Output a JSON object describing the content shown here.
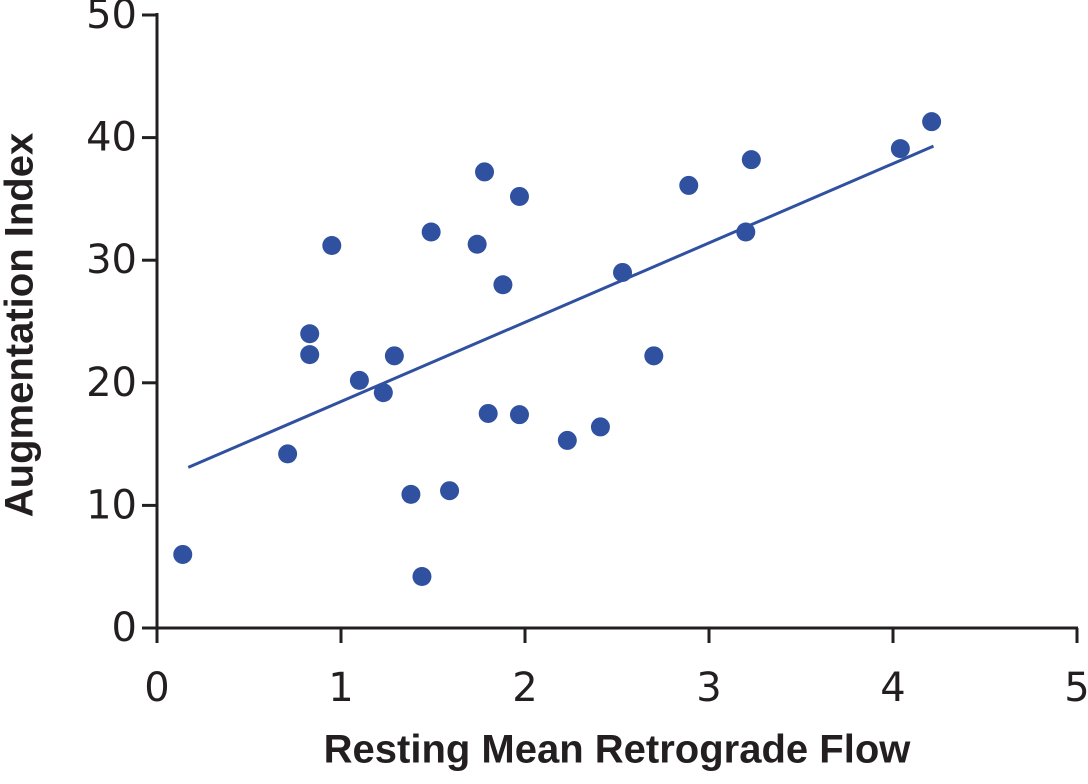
{
  "chart_data": {
    "type": "scatter",
    "x_label": "Resting Mean Retrograde Flow",
    "y_label": "Augmentation Index",
    "xlim": [
      0,
      5
    ],
    "xticks": [
      0,
      1,
      2,
      3,
      4,
      5
    ],
    "ylim": [
      0,
      50
    ],
    "yticks": [
      0,
      10,
      20,
      30,
      40,
      50
    ],
    "color": "#3050a0",
    "x": [
      0.14,
      0.71,
      0.83,
      0.83,
      0.95,
      1.1,
      1.23,
      1.29,
      1.38,
      1.44,
      1.49,
      1.59,
      1.74,
      1.78,
      1.8,
      1.88,
      1.97,
      1.97,
      2.23,
      2.41,
      2.53,
      2.7,
      2.89,
      3.2,
      3.23,
      4.04,
      4.21
    ],
    "values": [
      6.0,
      14.2,
      24.0,
      22.3,
      31.2,
      20.2,
      19.2,
      22.2,
      10.9,
      4.2,
      32.3,
      11.2,
      31.3,
      37.2,
      17.5,
      28.0,
      35.2,
      17.4,
      15.3,
      16.4,
      29.0,
      22.2,
      36.1,
      32.3,
      38.2,
      39.1,
      41.3
    ],
    "trendline": {
      "x": [
        0.17,
        4.22
      ],
      "values": [
        13.1,
        39.3
      ]
    }
  }
}
